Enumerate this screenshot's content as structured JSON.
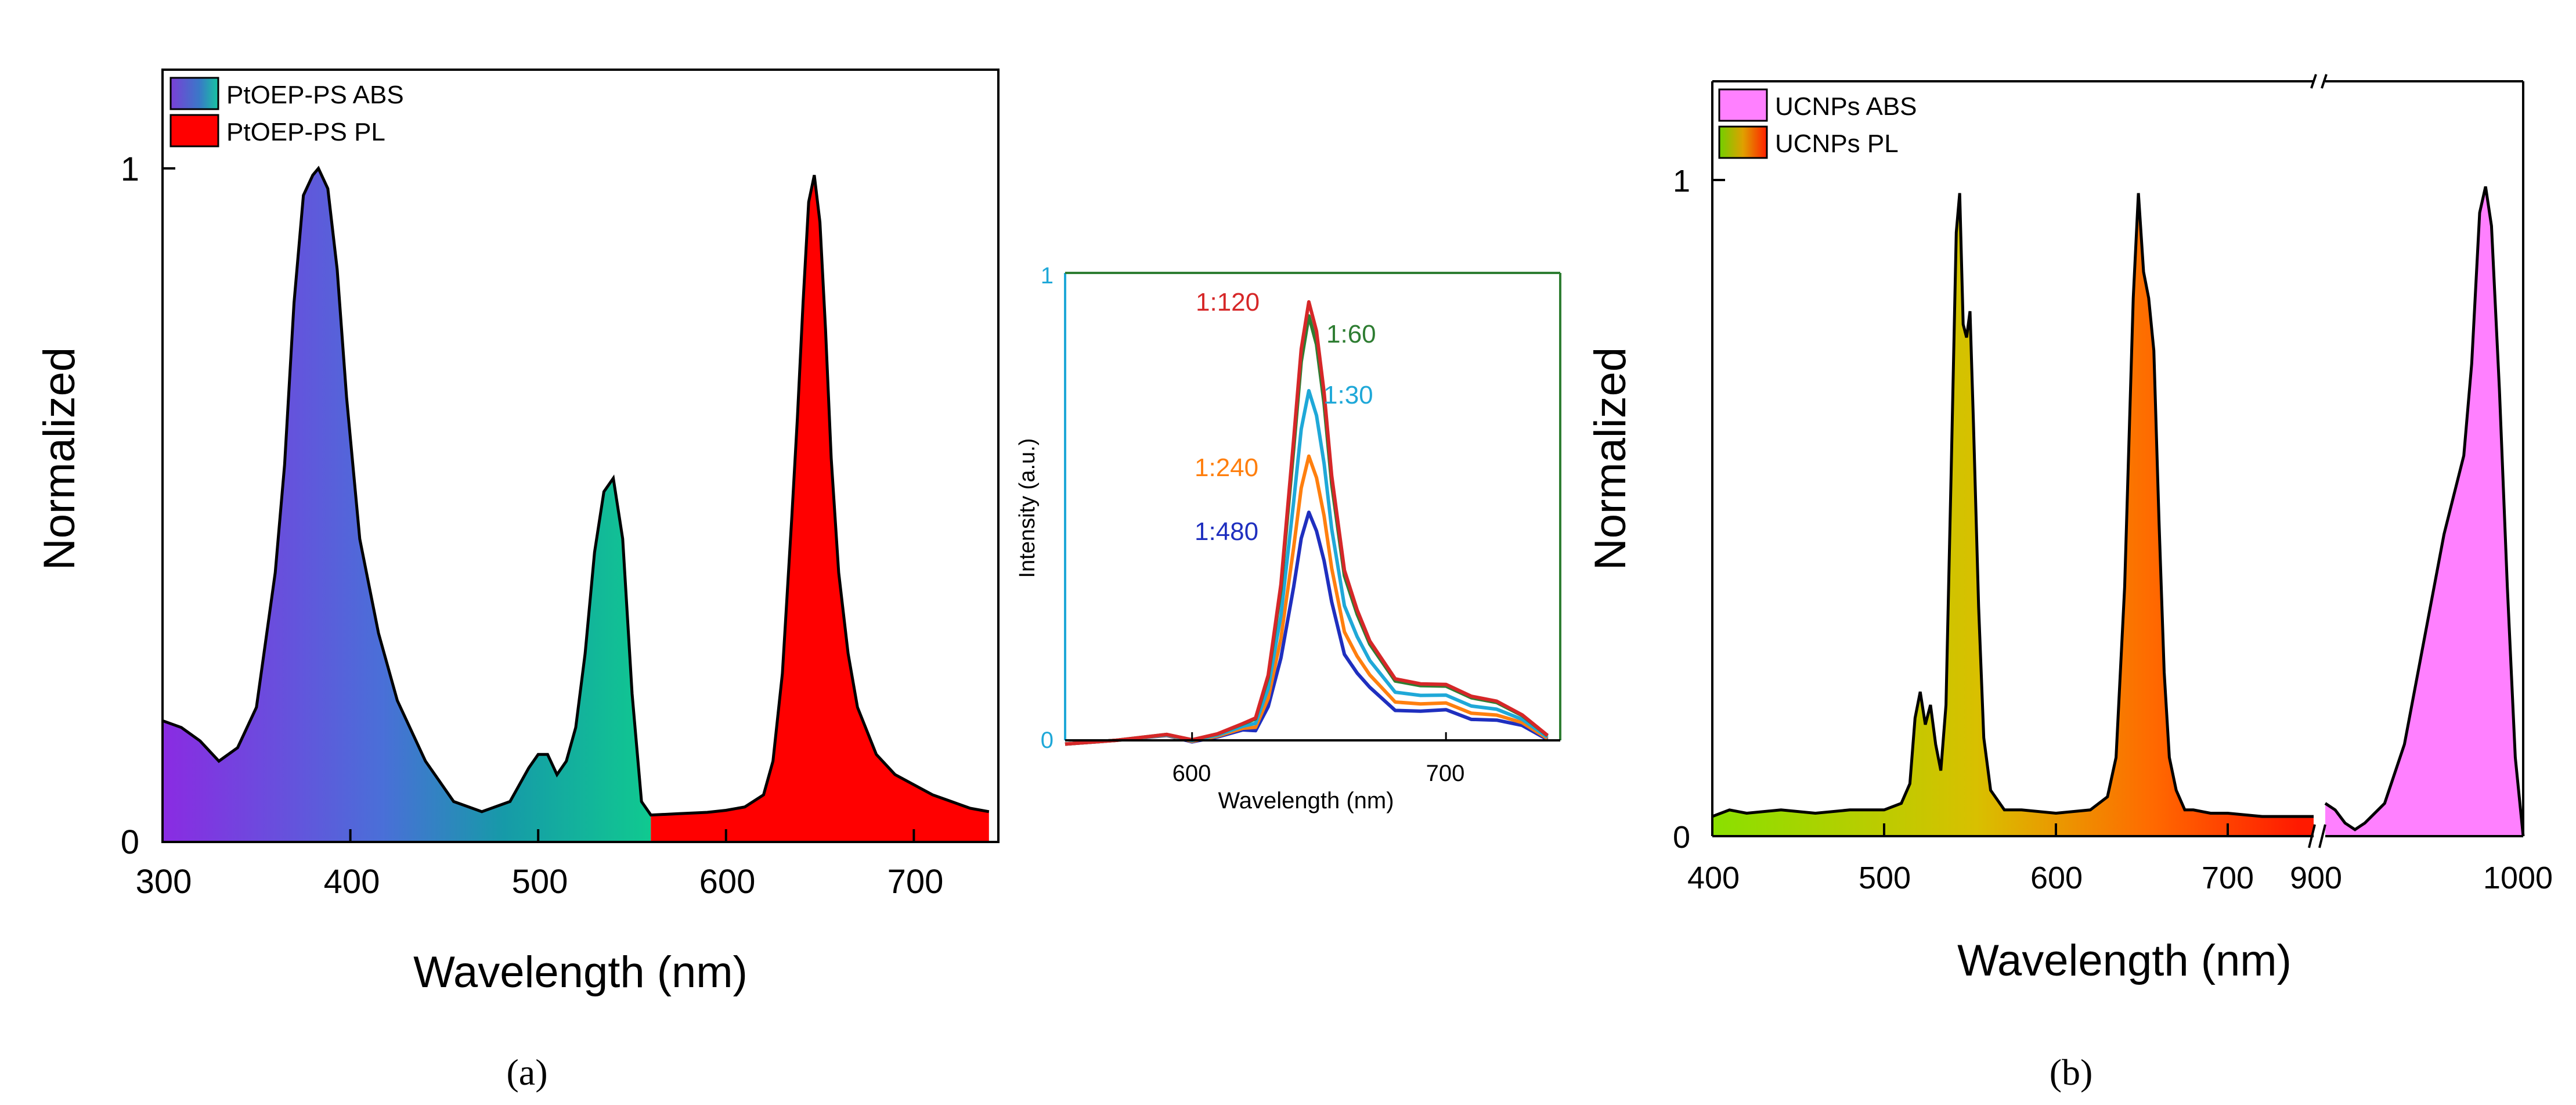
{
  "chart_data": [
    {
      "id": "panel-a-main",
      "type": "area",
      "xlabel": "Wavelength (nm)",
      "ylabel": "Normalized",
      "xlim": [
        300,
        745
      ],
      "ylim": [
        0,
        1.1
      ],
      "xticks": [
        "300",
        "400",
        "500",
        "600",
        "700"
      ],
      "yticks": [
        "0",
        "1"
      ],
      "legend": [
        {
          "label": "PtOEP-PS ABS",
          "swatch": "gradient-purple-teal"
        },
        {
          "label": "PtOEP-PS PL",
          "swatch": "#ff0000"
        }
      ],
      "series": [
        {
          "name": "PtOEP-PS ABS",
          "fill": "gradient",
          "x": [
            300,
            310,
            320,
            330,
            340,
            350,
            360,
            365,
            370,
            375,
            380,
            383,
            388,
            393,
            398,
            405,
            415,
            425,
            440,
            455,
            470,
            485,
            495,
            500,
            505,
            510,
            515,
            520,
            525,
            530,
            535,
            540,
            545,
            550,
            555,
            560
          ],
          "y": [
            0.18,
            0.17,
            0.15,
            0.12,
            0.14,
            0.2,
            0.4,
            0.56,
            0.8,
            0.96,
            0.99,
            1.0,
            0.97,
            0.85,
            0.66,
            0.45,
            0.31,
            0.21,
            0.12,
            0.06,
            0.045,
            0.06,
            0.11,
            0.13,
            0.13,
            0.1,
            0.12,
            0.17,
            0.28,
            0.43,
            0.52,
            0.54,
            0.45,
            0.22,
            0.06,
            0.04
          ]
        },
        {
          "name": "PtOEP-PS PL",
          "fill": "#ff0000",
          "x": [
            560,
            575,
            590,
            600,
            610,
            620,
            625,
            630,
            635,
            638,
            641,
            644,
            647,
            650,
            653,
            656,
            660,
            665,
            670,
            680,
            690,
            700,
            710,
            720,
            730,
            740
          ],
          "y": [
            0.04,
            0.042,
            0.044,
            0.047,
            0.052,
            0.07,
            0.12,
            0.25,
            0.48,
            0.63,
            0.8,
            0.95,
            0.99,
            0.92,
            0.76,
            0.57,
            0.4,
            0.28,
            0.2,
            0.13,
            0.1,
            0.085,
            0.07,
            0.06,
            0.05,
            0.045
          ]
        }
      ]
    },
    {
      "id": "panel-a-inset",
      "type": "line",
      "xlabel": "Wavelength (nm)",
      "ylabel": "Intensity (a.u.)",
      "xlim": [
        550,
        745
      ],
      "ylim": [
        0,
        1
      ],
      "xticks": [
        "600",
        "700"
      ],
      "yticks": [
        "0",
        "1"
      ],
      "series": [
        {
          "name": "1:120",
          "color": "#d62728",
          "peak": 0.93
        },
        {
          "name": "1:60",
          "color": "#2e7d32",
          "peak": 0.9
        },
        {
          "name": "1:30",
          "color": "#1fa8d8",
          "peak": 0.74
        },
        {
          "name": "1:240",
          "color": "#ff7f0e",
          "peak": 0.6
        },
        {
          "name": "1:480",
          "color": "#1f2fbf",
          "peak": 0.48
        }
      ],
      "x": [
        550,
        570,
        590,
        600,
        610,
        620,
        625,
        630,
        635,
        640,
        643,
        646,
        649,
        652,
        655,
        660,
        665,
        670,
        680,
        690,
        700,
        710,
        720,
        730,
        740
      ],
      "shape": [
        0.0,
        0.0,
        0.005,
        0.01,
        0.015,
        0.03,
        0.06,
        0.15,
        0.35,
        0.7,
        0.9,
        1.0,
        0.95,
        0.8,
        0.6,
        0.4,
        0.3,
        0.22,
        0.15,
        0.13,
        0.12,
        0.11,
        0.09,
        0.05,
        0.02
      ]
    },
    {
      "id": "panel-b",
      "type": "area",
      "xlabel": "Wavelength (nm)",
      "ylabel": "Normalized",
      "xlim_left": [
        400,
        750
      ],
      "xlim_right": [
        900,
        1000
      ],
      "ylim": [
        0,
        1.1
      ],
      "xticks": [
        "400",
        "500",
        "600",
        "700",
        "900",
        "1000"
      ],
      "yticks": [
        "0",
        "1"
      ],
      "legend": [
        {
          "label": "UCNPs ABS",
          "swatch": "#ff80ff"
        },
        {
          "label": "UCNPs PL",
          "swatch": "gradient-green-red"
        }
      ],
      "series": [
        {
          "name": "UCNPs PL",
          "fill": "gradient",
          "x": [
            400,
            410,
            420,
            440,
            460,
            480,
            500,
            510,
            515,
            518,
            521,
            524,
            527,
            530,
            533,
            536,
            539,
            542,
            544,
            546,
            548,
            550,
            552,
            555,
            558,
            562,
            570,
            580,
            600,
            620,
            630,
            635,
            640,
            645,
            648,
            651,
            654,
            657,
            660,
            663,
            666,
            670,
            675,
            680,
            690,
            700,
            720,
            740,
            750
          ],
          "y": [
            0.03,
            0.04,
            0.035,
            0.04,
            0.035,
            0.04,
            0.04,
            0.05,
            0.08,
            0.18,
            0.22,
            0.17,
            0.2,
            0.14,
            0.1,
            0.2,
            0.55,
            0.92,
            0.98,
            0.78,
            0.76,
            0.8,
            0.63,
            0.35,
            0.15,
            0.07,
            0.04,
            0.04,
            0.035,
            0.04,
            0.06,
            0.12,
            0.38,
            0.82,
            0.98,
            0.86,
            0.82,
            0.74,
            0.48,
            0.25,
            0.12,
            0.07,
            0.04,
            0.04,
            0.035,
            0.035,
            0.03,
            0.03,
            0.03
          ]
        },
        {
          "name": "UCNPs ABS",
          "fill": "#ff80ff",
          "x": [
            900,
            905,
            910,
            915,
            920,
            930,
            940,
            950,
            960,
            965,
            970,
            974,
            978,
            981,
            984,
            988,
            992,
            996,
            1000
          ],
          "y": [
            0.05,
            0.04,
            0.02,
            0.01,
            0.02,
            0.05,
            0.14,
            0.3,
            0.46,
            0.52,
            0.58,
            0.72,
            0.95,
            0.99,
            0.93,
            0.68,
            0.38,
            0.12,
            0.0
          ]
        }
      ]
    }
  ],
  "captions": {
    "a": "(a)",
    "b": "(b)"
  }
}
